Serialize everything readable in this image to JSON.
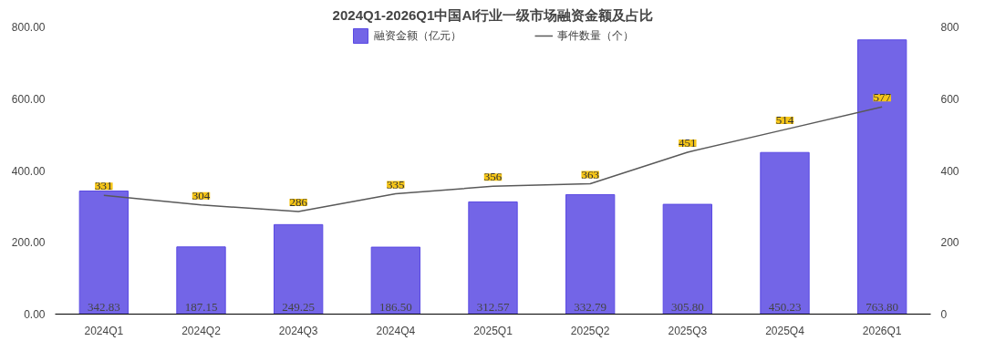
{
  "chart_data": {
    "type": "bar",
    "title": "2024Q1-2026Q1中国AI行业一级市场融资金额及占比",
    "categories": [
      "2024Q1",
      "2024Q2",
      "2024Q3",
      "2024Q4",
      "2025Q1",
      "2025Q2",
      "2025Q3",
      "2025Q4",
      "2026Q1"
    ],
    "series": [
      {
        "name": "融资金额（亿元）",
        "color": "#5a4ae3",
        "values": [
          342.83,
          187.15,
          249.25,
          186.5,
          312.57,
          332.79,
          305.8,
          450.23,
          763.8
        ],
        "value_labels": [
          "342.83",
          "187.15",
          "249.25",
          "186.50",
          "312.57",
          "332.79",
          "305.80",
          "450.23",
          "763.80"
        ]
      },
      {
        "name": "事件数量（个）",
        "type": "line",
        "axis": "y2",
        "color": "#595959",
        "values": [
          331,
          304,
          286,
          335,
          356,
          363,
          451,
          514,
          577
        ],
        "value_labels": [
          "331",
          "304",
          "286",
          "335",
          "356",
          "363",
          "451",
          "514",
          "577"
        ]
      }
    ],
    "ylim": [
      0,
      800
    ],
    "yticks": [
      {
        "value": 0,
        "label": "0.00"
      },
      {
        "value": 200,
        "label": "200.00"
      },
      {
        "value": 400,
        "label": "400.00"
      },
      {
        "value": 600,
        "label": "600.00"
      },
      {
        "value": 800,
        "label": "800.00"
      }
    ],
    "y2lim": [
      0,
      800
    ],
    "y2ticks": [
      0,
      200,
      400,
      600,
      800
    ],
    "legend": "top",
    "grid": false
  }
}
